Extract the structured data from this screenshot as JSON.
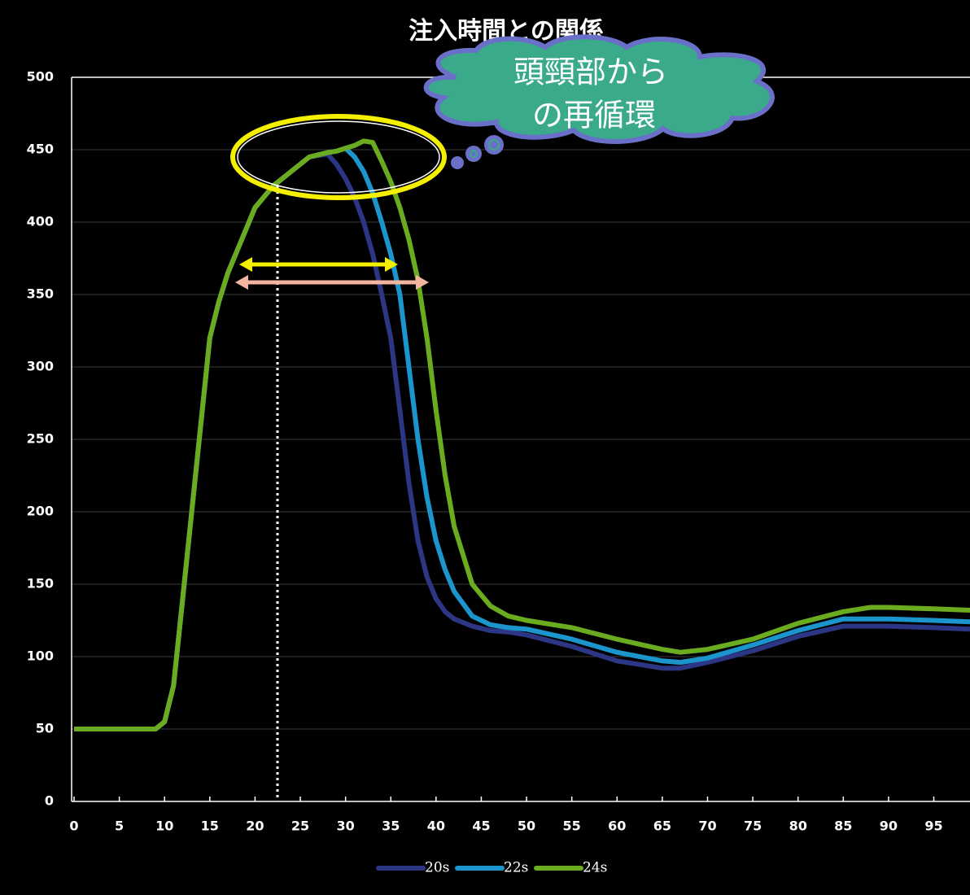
{
  "chart_data": {
    "type": "line",
    "title": "注入時間との関係",
    "annotations": [
      "頭頸部から",
      "の再循環"
    ],
    "x": [
      0,
      5,
      9,
      10,
      11,
      12,
      13,
      14,
      15,
      16,
      17,
      18,
      19,
      20,
      22,
      24,
      26,
      28,
      29,
      30,
      31,
      32,
      33,
      34,
      35,
      36,
      37,
      38,
      39,
      40,
      41,
      42,
      44,
      46,
      48,
      50,
      55,
      60,
      65,
      67,
      70,
      75,
      80,
      85,
      88,
      90,
      95,
      99
    ],
    "series": [
      {
        "name": "20s",
        "color": "#2d3585",
        "values": [
          50,
          50,
          50,
          55,
          80,
          140,
          200,
          260,
          320,
          345,
          365,
          380,
          395,
          410,
          425,
          435,
          445,
          447,
          440,
          430,
          417,
          400,
          378,
          350,
          320,
          270,
          220,
          180,
          155,
          140,
          131,
          126,
          121,
          118,
          117,
          115,
          107,
          97,
          92,
          92,
          96,
          104,
          114,
          121,
          121,
          121,
          120,
          119
        ]
      },
      {
        "name": "22s",
        "color": "#1b95cc",
        "values": [
          50,
          50,
          50,
          55,
          80,
          140,
          200,
          260,
          320,
          345,
          365,
          380,
          395,
          410,
          425,
          435,
          445,
          448,
          449,
          451,
          445,
          435,
          420,
          400,
          378,
          350,
          300,
          250,
          210,
          180,
          160,
          145,
          128,
          122,
          120,
          119,
          112,
          103,
          97,
          96,
          99,
          108,
          118,
          126,
          126,
          126,
          125,
          124
        ]
      },
      {
        "name": "24s",
        "color": "#6aab1f",
        "values": [
          50,
          50,
          50,
          55,
          80,
          140,
          200,
          260,
          320,
          345,
          365,
          380,
          395,
          410,
          425,
          435,
          445,
          448,
          449,
          451,
          453,
          456,
          455,
          442,
          428,
          410,
          388,
          360,
          320,
          270,
          225,
          190,
          150,
          135,
          128,
          125,
          120,
          112,
          105,
          103,
          105,
          112,
          123,
          131,
          134,
          134,
          133,
          132
        ]
      }
    ],
    "xlim": [
      0,
      99
    ],
    "xticks": [
      0,
      5,
      10,
      15,
      20,
      25,
      30,
      35,
      40,
      45,
      50,
      55,
      60,
      65,
      70,
      75,
      80,
      85,
      90,
      95
    ],
    "ylim": [
      0,
      500
    ],
    "yticks": [
      0,
      50,
      100,
      150,
      200,
      250,
      300,
      350,
      400,
      450,
      500
    ],
    "grid": true
  }
}
